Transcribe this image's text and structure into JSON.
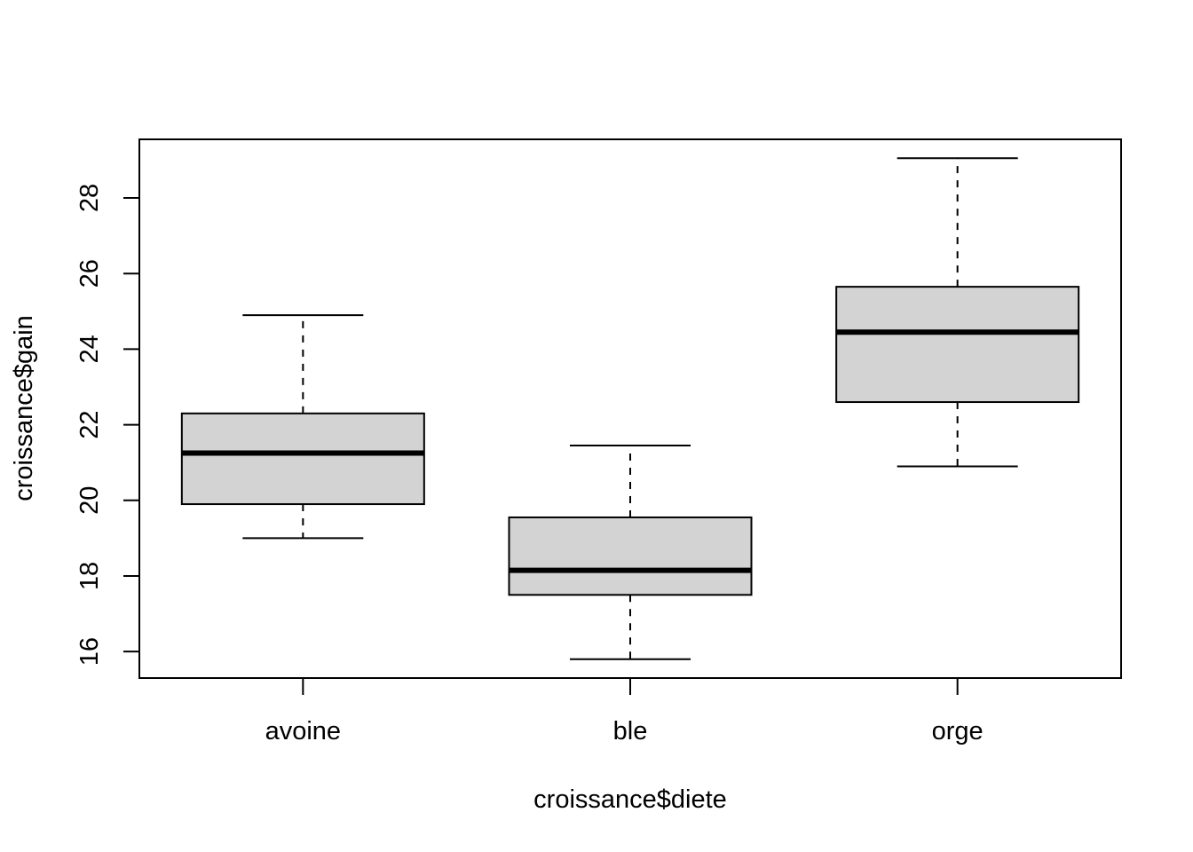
{
  "chart_data": {
    "type": "box",
    "xlabel": "croissance$diete",
    "ylabel": "croissance$gain",
    "categories": [
      "avoine",
      "ble",
      "orge"
    ],
    "boxes": [
      {
        "category": "avoine",
        "whisker_low": 19.0,
        "q1": 19.9,
        "median": 21.25,
        "q3": 22.3,
        "whisker_high": 24.9
      },
      {
        "category": "ble",
        "whisker_low": 15.8,
        "q1": 17.5,
        "median": 18.15,
        "q3": 19.55,
        "whisker_high": 21.45
      },
      {
        "category": "orge",
        "whisker_low": 20.9,
        "q1": 22.6,
        "median": 24.45,
        "q3": 25.65,
        "whisker_high": 29.05
      }
    ],
    "y_ticks": [
      16,
      18,
      20,
      22,
      24,
      26,
      28
    ],
    "ylim": [
      15.3,
      29.55
    ],
    "grid": false,
    "box_fill": "#d3d3d3",
    "line_color": "#000000"
  }
}
